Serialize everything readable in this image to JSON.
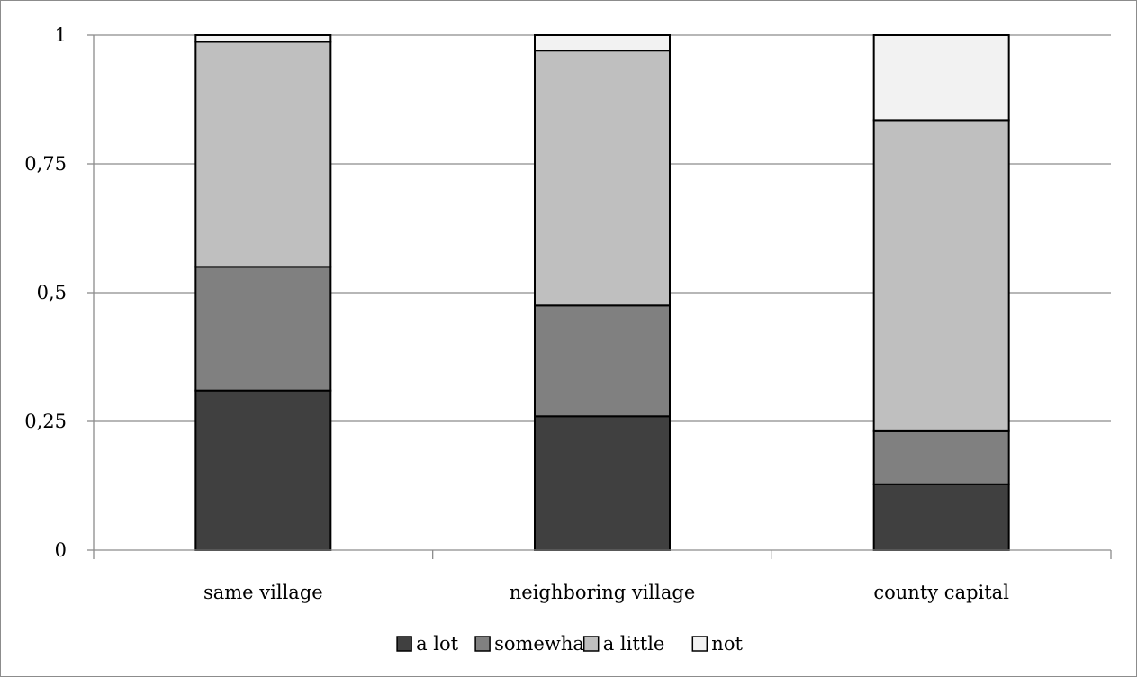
{
  "chart_data": {
    "type": "bar",
    "stacked": true,
    "categories": [
      "same village",
      "neighboring village",
      "county capital"
    ],
    "series": [
      {
        "name": "a lot",
        "color": "#404040",
        "values": [
          0.31,
          0.26,
          0.128
        ]
      },
      {
        "name": "somewhat",
        "color": "#808080",
        "values": [
          0.24,
          0.215,
          0.103
        ]
      },
      {
        "name": "a little",
        "color": "#bfbfbf",
        "values": [
          0.437,
          0.495,
          0.604
        ]
      },
      {
        "name": "not",
        "color": "#f2f2f2",
        "values": [
          0.013,
          0.03,
          0.165
        ]
      }
    ],
    "yticks": [
      "0",
      "0,25",
      "0,5",
      "0,75",
      "1"
    ],
    "ytick_values": [
      0,
      0.25,
      0.5,
      0.75,
      1
    ],
    "ylim": [
      0,
      1
    ],
    "title": "",
    "xlabel": "",
    "ylabel": "",
    "grid": true,
    "legend_position": "bottom"
  }
}
